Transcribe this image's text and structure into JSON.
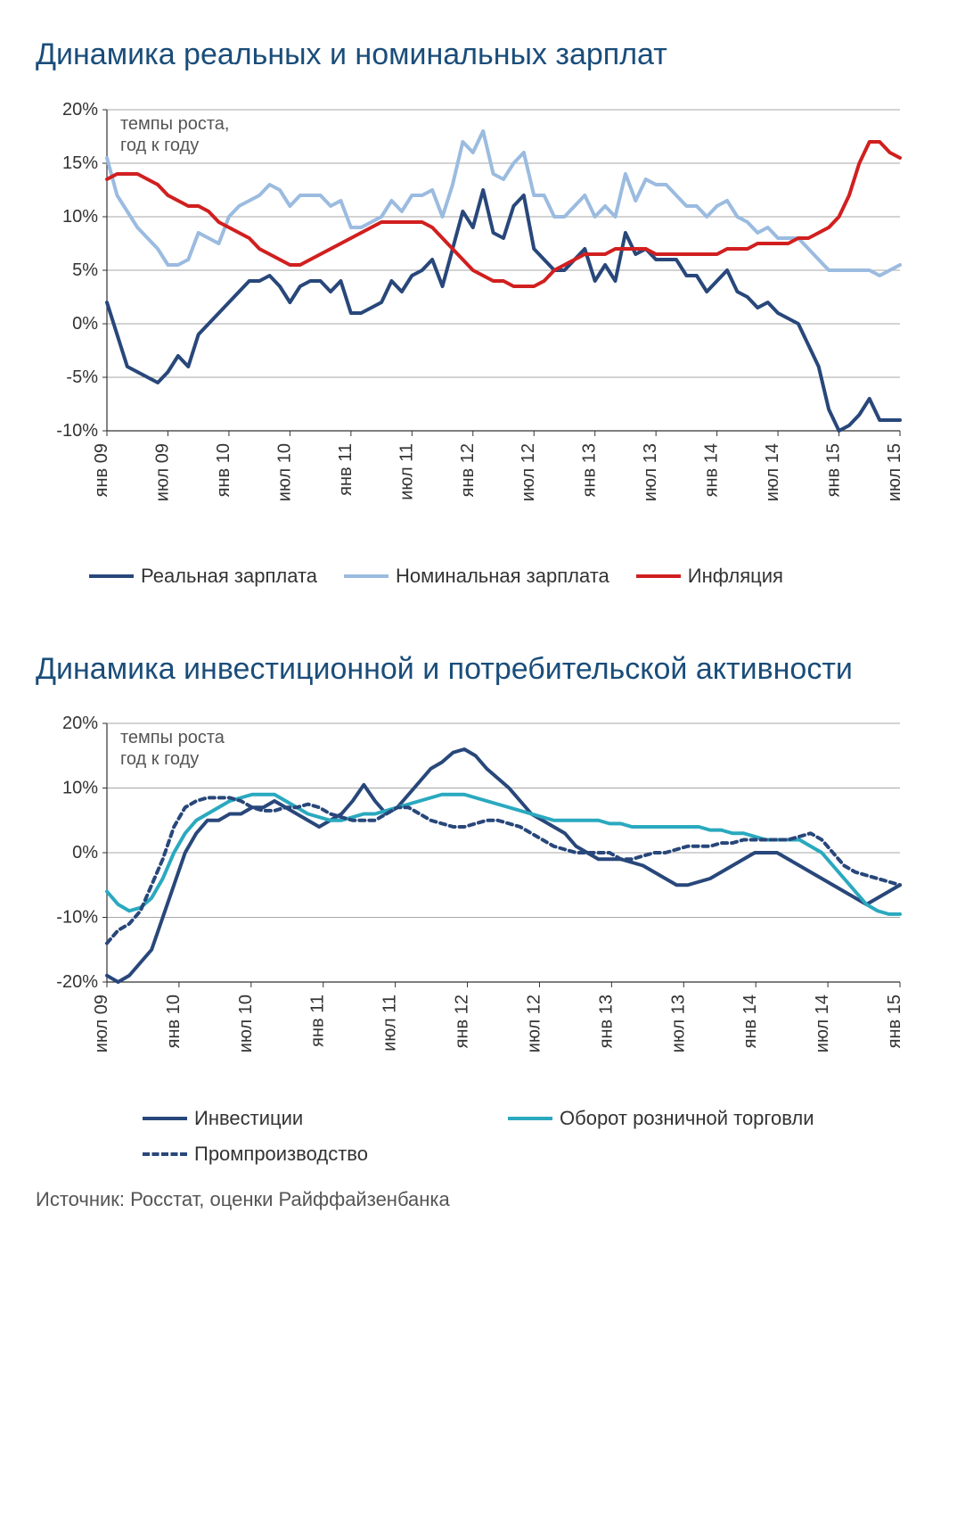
{
  "chart1": {
    "title": "Динамика реальных и номинальных зарплат",
    "subtitle_line1": "темпы роста,",
    "subtitle_line2": "год к году",
    "type": "line",
    "ylim": [
      -10,
      20
    ],
    "ytick_step": 5,
    "ysuffix": "%",
    "xlabels": [
      "янв 09",
      "июл 09",
      "янв 10",
      "июл 10",
      "янв 11",
      "июл 11",
      "янв 12",
      "июл 12",
      "янв 13",
      "июл 13",
      "янв 14",
      "июл 14",
      "янв 15",
      "июл 15"
    ],
    "n_points": 79,
    "grid_color": "#8a8a8a",
    "background": "#ffffff",
    "line_width": 4,
    "series": [
      {
        "name": "Реальная зарплата",
        "color": "#28477a",
        "dash": "none",
        "legend_label": "Реальная зарплата",
        "values": [
          2,
          -1,
          -4,
          -4.5,
          -5,
          -5.5,
          -4.5,
          -3,
          -4,
          -1,
          0,
          1,
          2,
          3,
          4,
          4,
          4.5,
          3.5,
          2,
          3.5,
          4,
          4,
          3,
          4,
          1,
          1,
          1.5,
          2,
          4,
          3,
          4.5,
          5,
          6,
          3.5,
          7,
          10.5,
          9,
          12.5,
          8.5,
          8,
          11,
          12,
          7,
          6,
          5,
          5,
          6,
          7,
          4,
          5.5,
          4,
          8.5,
          6.5,
          7,
          6,
          6,
          6,
          4.5,
          4.5,
          3,
          4,
          5,
          3,
          2.5,
          1.5,
          2,
          1,
          0.5,
          0,
          -2,
          -4,
          -8,
          -10,
          -9.5,
          -8.5,
          -7,
          -9,
          -9,
          -9
        ]
      },
      {
        "name": "Номинальная зарплата",
        "color": "#9bbbe0",
        "dash": "none",
        "legend_label": "Номинальная зарплата",
        "values": [
          15.5,
          12,
          10.5,
          9,
          8,
          7,
          5.5,
          5.5,
          6,
          8.5,
          8,
          7.5,
          10,
          11,
          11.5,
          12,
          13,
          12.5,
          11,
          12,
          12,
          12,
          11,
          11.5,
          9,
          9,
          9.5,
          10,
          11.5,
          10.5,
          12,
          12,
          12.5,
          10,
          13,
          17,
          16,
          18,
          14,
          13.5,
          15,
          16,
          12,
          12,
          10,
          10,
          11,
          12,
          10,
          11,
          10,
          14,
          11.5,
          13.5,
          13,
          13,
          12,
          11,
          11,
          10,
          11,
          11.5,
          10,
          9.5,
          8.5,
          9,
          8,
          8,
          8,
          7,
          6,
          5,
          5,
          5,
          5,
          5,
          4.5,
          5,
          5.5
        ]
      },
      {
        "name": "Инфляция",
        "color": "#d11f1f",
        "dash": "none",
        "legend_label": "Инфляция",
        "values": [
          13.5,
          14,
          14,
          14,
          13.5,
          13,
          12,
          11.5,
          11,
          11,
          10.5,
          9.5,
          9,
          8.5,
          8,
          7,
          6.5,
          6,
          5.5,
          5.5,
          6,
          6.5,
          7,
          7.5,
          8,
          8.5,
          9,
          9.5,
          9.5,
          9.5,
          9.5,
          9.5,
          9,
          8,
          7,
          6,
          5,
          4.5,
          4,
          4,
          3.5,
          3.5,
          3.5,
          4,
          5,
          5.5,
          6,
          6.5,
          6.5,
          6.5,
          7,
          7,
          7,
          7,
          6.5,
          6.5,
          6.5,
          6.5,
          6.5,
          6.5,
          6.5,
          7,
          7,
          7,
          7.5,
          7.5,
          7.5,
          7.5,
          8,
          8,
          8.5,
          9,
          10,
          12,
          15,
          17,
          17,
          16,
          15.5
        ]
      }
    ]
  },
  "chart2": {
    "title": "Динамика инвестиционной и потребительской активности",
    "subtitle_line1": "темпы роста",
    "subtitle_line2": "год к году",
    "type": "line",
    "ylim": [
      -20,
      20
    ],
    "ytick_step": 10,
    "ysuffix": "%",
    "xlabels": [
      "июл 09",
      "янв 10",
      "июл 10",
      "янв 11",
      "июл 11",
      "янв 12",
      "июл 12",
      "янв 13",
      "июл 13",
      "янв 14",
      "июл 14",
      "янв 15"
    ],
    "n_points": 72,
    "grid_color": "#8a8a8a",
    "background": "#ffffff",
    "line_width": 4,
    "series": [
      {
        "name": "Инвестиции",
        "color": "#28477a",
        "dash": "none",
        "legend_label": "Инвестиции",
        "values": [
          -19,
          -20,
          -19,
          -17,
          -15,
          -10,
          -5,
          0,
          3,
          5,
          5,
          6,
          6,
          7,
          7,
          8,
          7,
          6,
          5,
          4,
          5,
          6,
          8,
          10.5,
          8,
          6,
          7,
          9,
          11,
          13,
          14,
          15.5,
          16,
          15,
          13,
          11.5,
          10,
          8,
          6,
          5,
          4,
          3,
          1,
          0,
          -1,
          -1,
          -1,
          -1.5,
          -2,
          -3,
          -4,
          -5,
          -5,
          -4.5,
          -4,
          -3,
          -2,
          -1,
          0,
          0,
          0,
          -1,
          -2,
          -3,
          -4,
          -5,
          -6,
          -7,
          -8,
          -7,
          -6,
          -5
        ]
      },
      {
        "name": "Оборот розничной торговли",
        "color": "#2aa9bf",
        "dash": "none",
        "legend_label": "Оборот розничной торговли",
        "values": [
          -6,
          -8,
          -9,
          -8.5,
          -7,
          -4,
          0,
          3,
          5,
          6,
          7,
          8,
          8.5,
          9,
          9,
          9,
          8,
          7,
          6,
          5.5,
          5,
          5,
          5.5,
          6,
          6,
          6.5,
          7,
          7.5,
          8,
          8.5,
          9,
          9,
          9,
          8.5,
          8,
          7.5,
          7,
          6.5,
          6,
          5.5,
          5,
          5,
          5,
          5,
          5,
          4.5,
          4.5,
          4,
          4,
          4,
          4,
          4,
          4,
          4,
          3.5,
          3.5,
          3,
          3,
          2.5,
          2,
          2,
          2,
          2,
          1,
          0,
          -2,
          -4,
          -6,
          -8,
          -9,
          -9.5,
          -9.5
        ]
      },
      {
        "name": "Промпроизводство",
        "color": "#28477a",
        "dash": "6,5",
        "legend_label": "Промпроизводство",
        "values": [
          -14,
          -12,
          -11,
          -9,
          -5,
          -1,
          4,
          7,
          8,
          8.5,
          8.5,
          8.5,
          8,
          7,
          6.5,
          6.5,
          7,
          7,
          7.5,
          7,
          6,
          5.5,
          5,
          5,
          5,
          6,
          7,
          7,
          6,
          5,
          4.5,
          4,
          4,
          4.5,
          5,
          5,
          4.5,
          4,
          3,
          2,
          1,
          0.5,
          0,
          0,
          0,
          0,
          -1,
          -1,
          -0.5,
          0,
          0,
          0.5,
          1,
          1,
          1,
          1.5,
          1.5,
          2,
          2,
          2,
          2,
          2,
          2.5,
          3,
          2,
          0,
          -2,
          -3,
          -3.5,
          -4,
          -4.5,
          -5
        ]
      }
    ]
  },
  "source_label": "Источник: Росстат, оценки Райффайзенбанка"
}
